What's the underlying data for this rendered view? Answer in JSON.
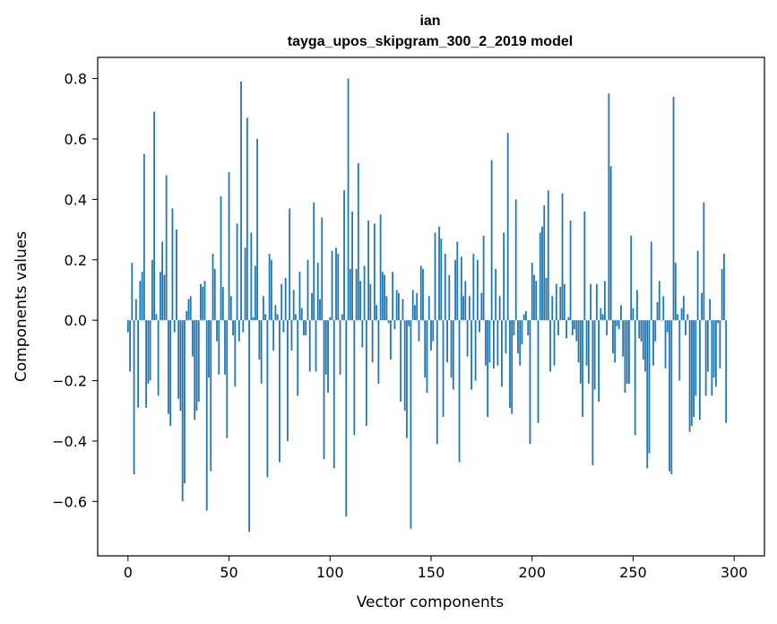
{
  "chart_data": {
    "type": "bar",
    "title": "ian",
    "subtitle": "tayga_upos_skipgram_300_2_2019 model",
    "xlabel": "Vector components",
    "ylabel": "Components values",
    "xlim": [
      -15,
      315
    ],
    "ylim": [
      -0.78,
      0.87
    ],
    "xticks": [
      0,
      50,
      100,
      150,
      200,
      250,
      300
    ],
    "xtick_labels": [
      "0",
      "50",
      "100",
      "150",
      "200",
      "250",
      "300"
    ],
    "yticks": [
      -0.6,
      -0.4,
      -0.2,
      0.0,
      0.2,
      0.4,
      0.6,
      0.8
    ],
    "ytick_labels": [
      "−0.6",
      "−0.4",
      "−0.2",
      "0.0",
      "0.2",
      "0.4",
      "0.6",
      "0.8"
    ],
    "bar_color": "#1f77b4",
    "grid": false,
    "values": [
      -0.04,
      -0.17,
      0.19,
      -0.51,
      0.07,
      -0.29,
      0.13,
      0.16,
      0.55,
      -0.29,
      -0.21,
      -0.2,
      0.2,
      0.69,
      0.02,
      -0.25,
      0.16,
      0.26,
      0.15,
      0.48,
      -0.31,
      -0.35,
      0.37,
      -0.04,
      0.3,
      -0.26,
      -0.3,
      -0.6,
      -0.54,
      0.03,
      0.07,
      0.08,
      -0.12,
      -0.33,
      -0.3,
      -0.27,
      0.12,
      0.11,
      0.13,
      -0.63,
      -0.19,
      -0.5,
      0.22,
      0.17,
      -0.07,
      -0.18,
      0.41,
      0.11,
      -0.18,
      -0.39,
      0.49,
      0.08,
      -0.05,
      -0.22,
      0.32,
      -0.07,
      0.79,
      -0.04,
      0.24,
      0.67,
      -0.7,
      0.29,
      0.01,
      0.18,
      0.6,
      -0.13,
      -0.21,
      0.08,
      0.02,
      -0.52,
      0.22,
      0.2,
      -0.1,
      0.05,
      0.02,
      -0.47,
      0.12,
      -0.04,
      0.14,
      -0.4,
      0.37,
      -0.1,
      0.1,
      0.02,
      -0.25,
      0.16,
      0.04,
      -0.05,
      -0.05,
      0.2,
      -0.17,
      0.09,
      0.39,
      -0.17,
      0.19,
      0.07,
      0.34,
      -0.46,
      -0.18,
      -0.24,
      0.01,
      0.23,
      -0.49,
      0.24,
      0.22,
      -0.18,
      0.02,
      0.43,
      -0.65,
      0.8,
      0.17,
      0.36,
      -0.38,
      0.17,
      0.52,
      0.13,
      -0.09,
      0.18,
      -0.35,
      0.33,
      0.12,
      -0.14,
      0.32,
      0.05,
      -0.21,
      0.35,
      0.16,
      0.15,
      0.08,
      -0.01,
      -0.13,
      0.16,
      -0.03,
      0.1,
      0.09,
      -0.27,
      0.07,
      -0.3,
      -0.39,
      -0.02,
      -0.69,
      0.1,
      0.05,
      0.09,
      -0.07,
      0.18,
      0.17,
      -0.19,
      -0.24,
      0.08,
      -0.1,
      -0.07,
      0.29,
      -0.41,
      0.31,
      0.27,
      -0.32,
      0.22,
      -0.14,
      0.15,
      -0.19,
      -0.23,
      0.2,
      0.26,
      -0.47,
      0.21,
      0.08,
      0.13,
      -0.12,
      0.08,
      -0.23,
      0.22,
      -0.2,
      0.2,
      -0.04,
      0.09,
      0.28,
      -0.15,
      -0.32,
      -0.14,
      0.53,
      -0.16,
      0.17,
      -0.15,
      0.08,
      -0.22,
      0.29,
      -0.11,
      0.62,
      -0.29,
      -0.31,
      -0.05,
      0.4,
      -0.11,
      -0.15,
      -0.08,
      0.02,
      0.03,
      -0.05,
      -0.41,
      0.19,
      0.15,
      0.13,
      -0.34,
      0.29,
      0.31,
      0.38,
      0.14,
      0.43,
      -0.17,
      0.08,
      -0.15,
      0.12,
      -0.05,
      0.11,
      0.42,
      0.12,
      -0.06,
      0.01,
      0.33,
      -0.05,
      -0.03,
      -0.07,
      -0.14,
      -0.21,
      -0.32,
      0.36,
      -0.15,
      -0.21,
      0.12,
      -0.48,
      -0.23,
      0.12,
      -0.27,
      0.04,
      0.02,
      0.13,
      -0.05,
      0.75,
      0.51,
      -0.11,
      -0.14,
      -0.02,
      -0.03,
      0.05,
      -0.12,
      -0.24,
      -0.21,
      -0.21,
      0.28,
      0.04,
      -0.38,
      0.1,
      -0.06,
      -0.07,
      -0.13,
      -0.17,
      -0.49,
      -0.44,
      0.26,
      -0.15,
      -0.07,
      0.06,
      0.13,
      0.0,
      0.08,
      -0.16,
      -0.04,
      -0.5,
      -0.51,
      0.74,
      0.19,
      0.02,
      -0.2,
      0.04,
      0.08,
      -0.05,
      0.02,
      -0.37,
      -0.35,
      -0.32,
      -0.25,
      0.23,
      -0.33,
      0.09,
      0.39,
      -0.25,
      -0.17,
      0.07,
      -0.25,
      -0.19,
      -0.22,
      -0.01,
      -0.16,
      0.17,
      0.22,
      -0.34
    ]
  }
}
